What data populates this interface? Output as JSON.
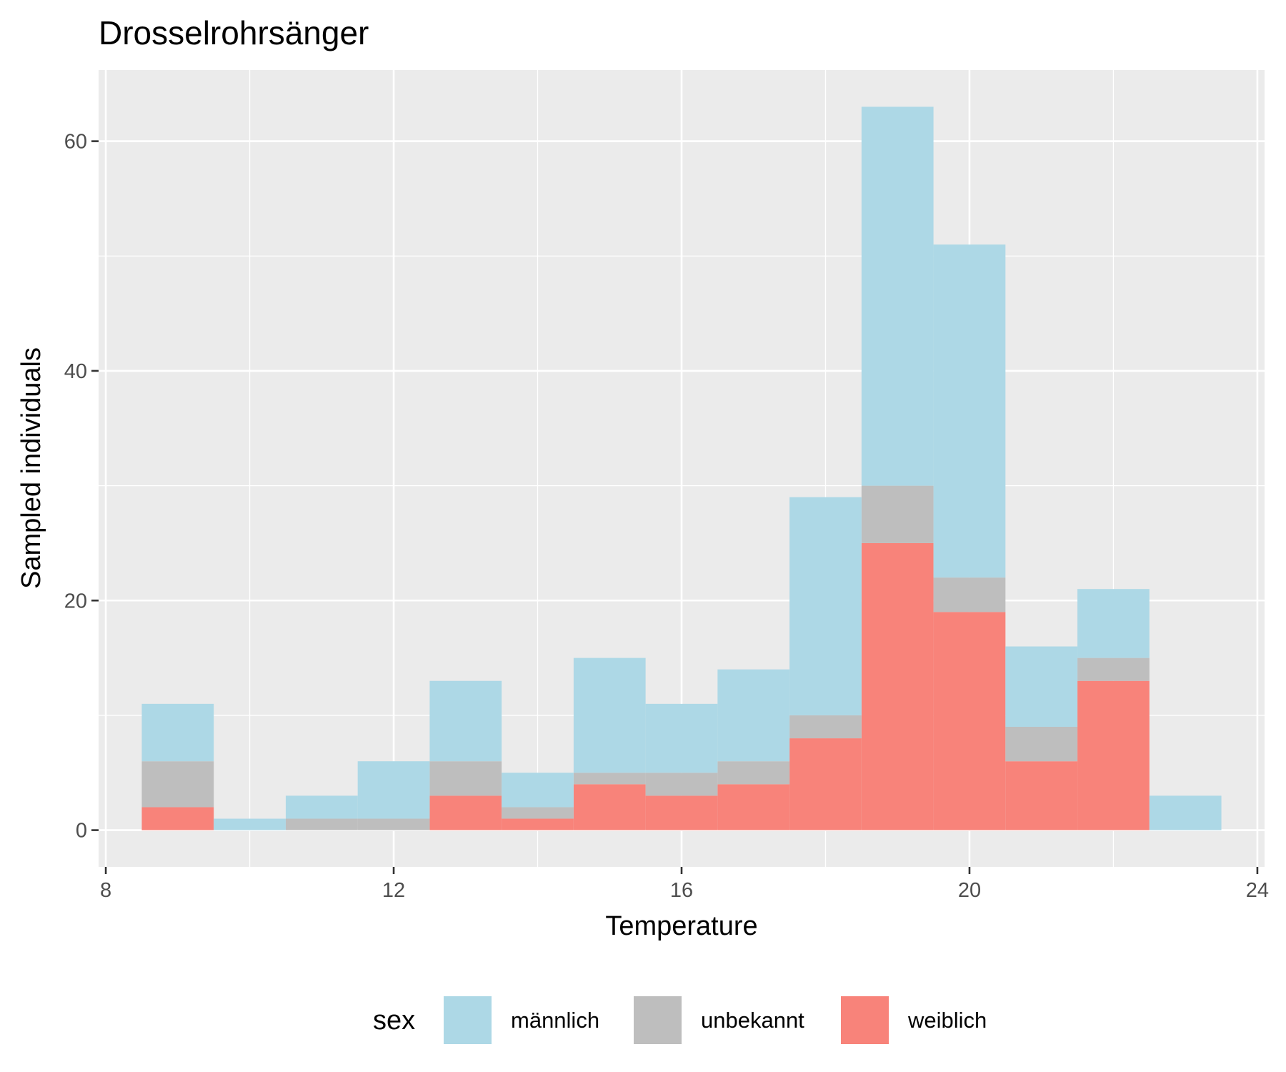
{
  "chart_data": {
    "type": "bar",
    "stacked": true,
    "title": "Drosselrohrsänger",
    "xlabel": "Temperature",
    "ylabel": "Sampled individuals",
    "xlim": [
      7.9,
      24.1
    ],
    "ylim": [
      -3.2,
      66.2
    ],
    "x_ticks": [
      8,
      12,
      16,
      20,
      24
    ],
    "y_ticks": [
      0,
      20,
      40,
      60
    ],
    "bin_width": 1,
    "bin_centers": [
      9,
      10,
      11,
      12,
      13,
      14,
      15,
      16,
      17,
      18,
      19,
      20,
      21,
      22,
      23
    ],
    "series": [
      {
        "name": "weiblich",
        "color": "#F8837A",
        "values": [
          2,
          0,
          0,
          0,
          3,
          1,
          4,
          3,
          4,
          8,
          25,
          19,
          6,
          13,
          0
        ]
      },
      {
        "name": "unbekannt",
        "color": "#BEBEBE",
        "values": [
          4,
          0,
          1,
          1,
          3,
          1,
          1,
          2,
          2,
          2,
          5,
          3,
          3,
          2,
          0
        ]
      },
      {
        "name": "männlich",
        "color": "#ADD8E6",
        "values": [
          5,
          1,
          2,
          5,
          7,
          3,
          10,
          6,
          8,
          19,
          33,
          29,
          7,
          6,
          3
        ]
      }
    ],
    "legend": {
      "title": "sex",
      "position": "bottom",
      "entries": [
        {
          "label": "männlich",
          "color": "#ADD8E6"
        },
        {
          "label": "unbekannt",
          "color": "#BEBEBE"
        },
        {
          "label": "weiblich",
          "color": "#F8837A"
        }
      ]
    },
    "grid": true,
    "panel_background": "#EBEBEB"
  }
}
